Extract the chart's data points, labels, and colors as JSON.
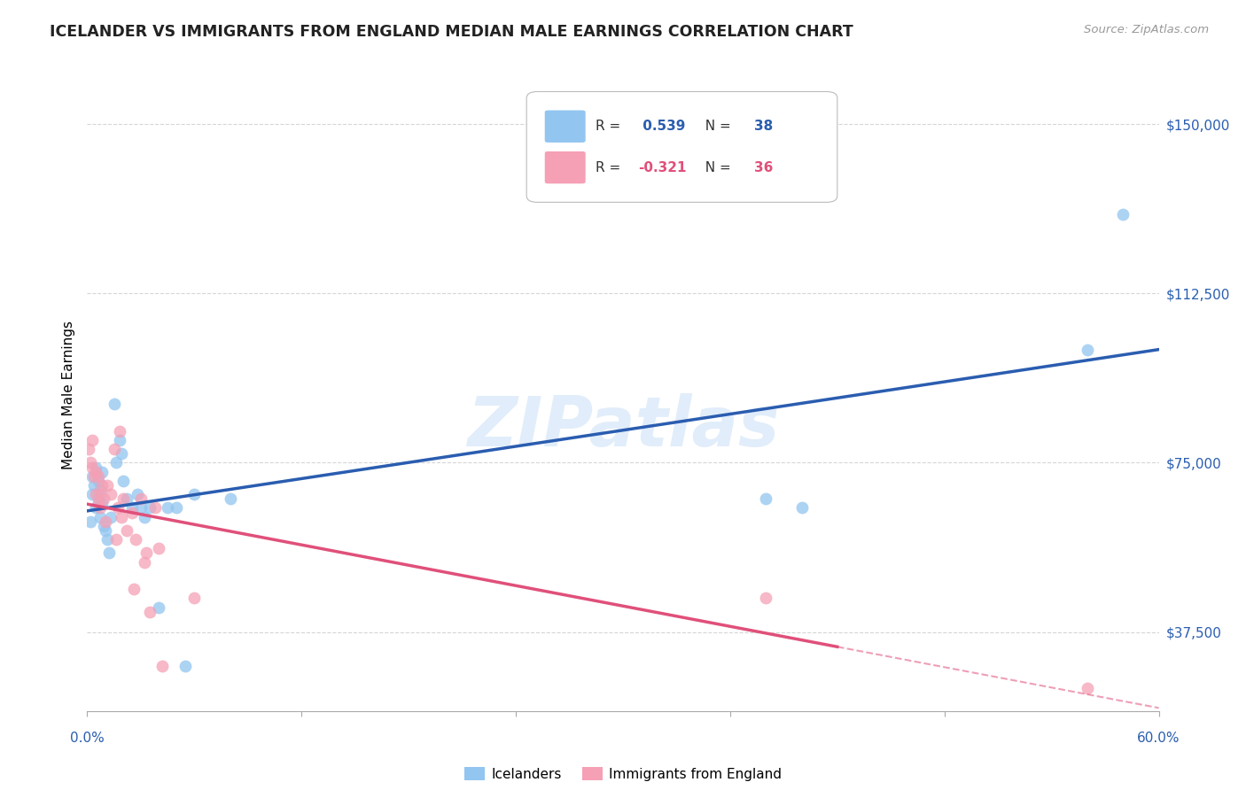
{
  "title": "ICELANDER VS IMMIGRANTS FROM ENGLAND MEDIAN MALE EARNINGS CORRELATION CHART",
  "source": "Source: ZipAtlas.com",
  "ylabel": "Median Male Earnings",
  "yticks": [
    37500,
    75000,
    112500,
    150000
  ],
  "ytick_labels": [
    "$37,500",
    "$75,000",
    "$112,500",
    "$150,000"
  ],
  "xlim": [
    0.0,
    0.6
  ],
  "ylim": [
    20000,
    160000
  ],
  "icelander_color": "#92C5F0",
  "england_color": "#F5A0B5",
  "icelander_line_color": "#2A5DB0",
  "england_line_color": "#E0507A",
  "background_color": "#FFFFFF",
  "icelander_x": [
    0.002,
    0.003,
    0.003,
    0.004,
    0.005,
    0.005,
    0.006,
    0.006,
    0.007,
    0.007,
    0.008,
    0.008,
    0.009,
    0.01,
    0.011,
    0.012,
    0.013,
    0.015,
    0.016,
    0.018,
    0.019,
    0.02,
    0.022,
    0.025,
    0.028,
    0.03,
    0.032,
    0.035,
    0.04,
    0.045,
    0.05,
    0.055,
    0.06,
    0.08,
    0.38,
    0.4,
    0.56,
    0.58
  ],
  "icelander_y": [
    62000,
    68000,
    72000,
    70000,
    65000,
    74000,
    67000,
    71000,
    63000,
    69000,
    66000,
    73000,
    61000,
    60000,
    58000,
    55000,
    63000,
    88000,
    75000,
    80000,
    77000,
    71000,
    67000,
    65000,
    68000,
    65000,
    63000,
    65000,
    43000,
    65000,
    65000,
    30000,
    68000,
    67000,
    67000,
    65000,
    100000,
    130000
  ],
  "england_x": [
    0.001,
    0.002,
    0.003,
    0.003,
    0.004,
    0.005,
    0.005,
    0.006,
    0.006,
    0.007,
    0.007,
    0.008,
    0.009,
    0.01,
    0.011,
    0.013,
    0.015,
    0.016,
    0.017,
    0.018,
    0.019,
    0.02,
    0.022,
    0.025,
    0.026,
    0.027,
    0.03,
    0.032,
    0.033,
    0.035,
    0.038,
    0.04,
    0.042,
    0.06,
    0.38,
    0.56
  ],
  "england_y": [
    78000,
    75000,
    80000,
    74000,
    72000,
    73000,
    68000,
    66000,
    72000,
    68000,
    65000,
    70000,
    67000,
    62000,
    70000,
    68000,
    78000,
    58000,
    65000,
    82000,
    63000,
    67000,
    60000,
    64000,
    47000,
    58000,
    67000,
    53000,
    55000,
    42000,
    65000,
    56000,
    30000,
    45000,
    45000,
    25000
  ],
  "R_ice": 0.539,
  "N_ice": 38,
  "R_eng": -0.321,
  "N_eng": 36,
  "watermark": "ZIPatlas"
}
